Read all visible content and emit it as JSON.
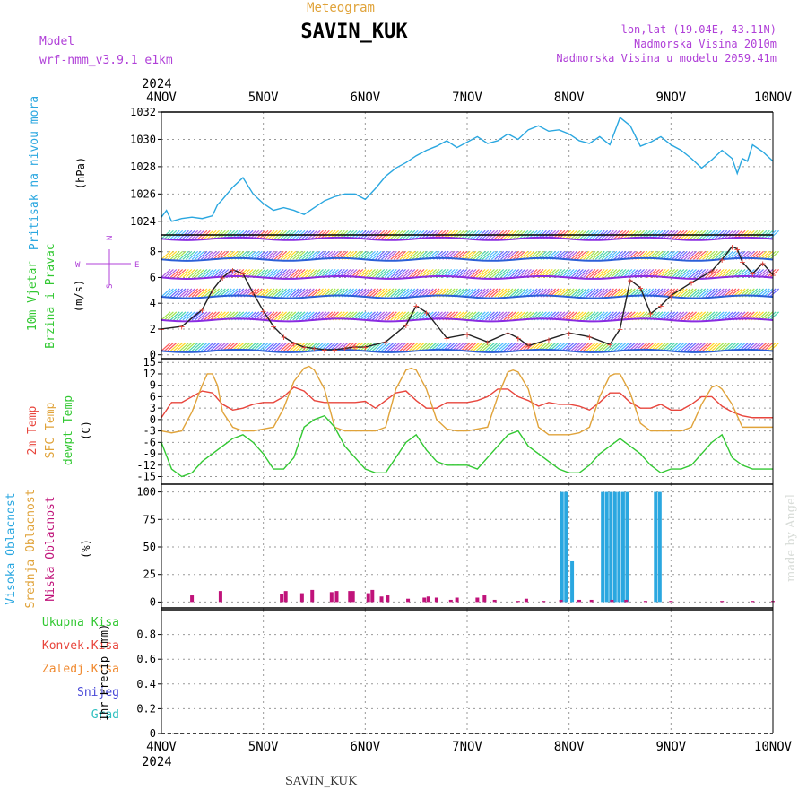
{
  "header": {
    "meteogram_label": "Meteogram",
    "station_title": "SAVIN_KUK",
    "model_label": "Model",
    "model_name": "wrf-nmm_v3.9.1  e1km",
    "lonlat": "lon,lat (19.04E, 43.11N)",
    "height": "Nadmorska Visina 2010m",
    "model_height": "Nadmorska Visina u modelu 2059.41m",
    "year_top": "2024",
    "year_bottom": "2024",
    "footer_station": "SAVIN_KUK",
    "credit": "made by Angel"
  },
  "colors": {
    "pressure": "#2aa7e0",
    "temp2m": "#e8453c",
    "sfc": "#e0a33a",
    "dewpt": "#32c832",
    "high_cloud": "#2aa7e0",
    "low_cloud": "#c0137a",
    "wind_blue": "#2b5fd8",
    "wind_purple": "#8a2be2",
    "rain_total": "#32c832",
    "rain_conv": "#e8453c",
    "rain_frozen": "#f08a30",
    "snow": "#4a4ad8",
    "hail": "#30c0c0"
  },
  "chart_data": [
    {
      "type": "line",
      "panel": "pressure",
      "ylabel_parts": [
        "Pritisak na nivou mora",
        "(hPa)"
      ],
      "ylim": [
        1023,
        1032
      ],
      "yticks": [
        1024,
        1026,
        1028,
        1030,
        1032
      ],
      "xticks": [
        "4NOV",
        "5NOV",
        "6NOV",
        "7NOV",
        "8NOV",
        "9NOV",
        "10NOV"
      ],
      "series": [
        {
          "color": "pressure",
          "x": [
            0,
            0.05,
            0.1,
            0.2,
            0.3,
            0.4,
            0.5,
            0.55,
            0.6,
            0.7,
            0.8,
            0.85,
            0.9,
            1.0,
            1.1,
            1.2,
            1.3,
            1.4,
            1.5,
            1.6,
            1.7,
            1.8,
            1.9,
            2.0,
            2.1,
            2.2,
            2.3,
            2.4,
            2.5,
            2.6,
            2.7,
            2.8,
            2.9,
            3.0,
            3.1,
            3.2,
            3.3,
            3.4,
            3.5,
            3.6,
            3.7,
            3.8,
            3.9,
            4.0,
            4.1,
            4.2,
            4.3,
            4.4,
            4.5,
            4.6,
            4.7,
            4.8,
            4.9,
            5.0,
            5.1,
            5.2,
            5.3,
            5.4,
            5.5,
            5.6,
            5.65,
            5.7,
            5.75,
            5.8,
            5.9,
            6.0
          ],
          "y": [
            1024.3,
            1024.8,
            1024.0,
            1024.2,
            1024.3,
            1024.2,
            1024.4,
            1025.2,
            1025.6,
            1026.5,
            1027.2,
            1026.6,
            1026.0,
            1025.3,
            1024.8,
            1025.0,
            1024.8,
            1024.5,
            1025.0,
            1025.5,
            1025.8,
            1026.0,
            1026.0,
            1025.6,
            1026.4,
            1027.3,
            1027.9,
            1028.3,
            1028.8,
            1029.2,
            1029.5,
            1029.9,
            1029.4,
            1029.8,
            1030.2,
            1029.7,
            1029.9,
            1030.4,
            1030.0,
            1030.7,
            1031.0,
            1030.6,
            1030.7,
            1030.4,
            1029.9,
            1029.7,
            1030.2,
            1029.6,
            1031.6,
            1031.0,
            1029.5,
            1029.8,
            1030.2,
            1029.6,
            1029.2,
            1028.6,
            1027.9,
            1028.5,
            1029.2,
            1028.6,
            1027.5,
            1028.6,
            1028.4,
            1029.6,
            1029.1,
            1028.4
          ]
        }
      ]
    },
    {
      "type": "line",
      "panel": "wind",
      "ylabel_parts": [
        "10m Vjetar",
        "Brzina i Pravac",
        "(m/s)"
      ],
      "compass": {
        "north": "N",
        "south": "S",
        "west": "W",
        "east": "E"
      },
      "ylim": [
        -0.3,
        9.3
      ],
      "yticks": [
        0,
        2,
        4,
        6,
        8
      ],
      "series": [
        {
          "name": "speed",
          "color": "#222222",
          "x": [
            0,
            0.2,
            0.4,
            0.5,
            0.6,
            0.7,
            0.8,
            0.9,
            1.0,
            1.1,
            1.2,
            1.3,
            1.4,
            1.5,
            1.6,
            1.7,
            1.8,
            1.9,
            2.0,
            2.2,
            2.4,
            2.5,
            2.6,
            2.8,
            3.0,
            3.2,
            3.4,
            3.5,
            3.6,
            3.8,
            4.0,
            4.2,
            4.4,
            4.5,
            4.6,
            4.7,
            4.8,
            4.9,
            5.0,
            5.2,
            5.4,
            5.5,
            5.6,
            5.65,
            5.7,
            5.8,
            5.9,
            6.0
          ],
          "y": [
            2.0,
            2.2,
            3.5,
            5.0,
            6.0,
            6.6,
            6.3,
            4.8,
            3.4,
            2.2,
            1.4,
            0.9,
            0.6,
            0.5,
            0.4,
            0.4,
            0.5,
            0.6,
            0.6,
            1.0,
            2.3,
            3.8,
            3.3,
            1.3,
            1.6,
            1.0,
            1.7,
            1.3,
            0.7,
            1.2,
            1.7,
            1.4,
            0.8,
            2.0,
            5.8,
            5.2,
            3.2,
            3.8,
            4.6,
            5.6,
            6.5,
            7.4,
            8.4,
            8.2,
            7.2,
            6.3,
            7.1,
            6.2
          ]
        }
      ],
      "wind_levels": [
        0.3,
        2.7,
        4.5,
        6.0,
        7.4,
        9.0
      ]
    },
    {
      "type": "line",
      "panel": "temperature",
      "ylabel_parts": [
        "2m Temp",
        "SFC Temp",
        "dewpt Temp",
        "(C)"
      ],
      "ylim": [
        -17,
        16
      ],
      "yticks": [
        -15,
        -12,
        -9,
        -6,
        -3,
        0,
        3,
        6,
        9,
        12,
        15
      ],
      "series": [
        {
          "name": "2m Temp",
          "color": "temp2m",
          "x": [
            0,
            0.1,
            0.2,
            0.3,
            0.4,
            0.5,
            0.6,
            0.7,
            0.8,
            0.9,
            1.0,
            1.1,
            1.2,
            1.3,
            1.4,
            1.5,
            1.6,
            1.7,
            1.8,
            1.9,
            2.0,
            2.1,
            2.2,
            2.3,
            2.4,
            2.5,
            2.6,
            2.7,
            2.8,
            2.9,
            3.0,
            3.1,
            3.2,
            3.3,
            3.4,
            3.5,
            3.6,
            3.7,
            3.8,
            3.9,
            4.0,
            4.1,
            4.2,
            4.3,
            4.4,
            4.5,
            4.6,
            4.7,
            4.8,
            4.9,
            5.0,
            5.1,
            5.2,
            5.3,
            5.4,
            5.5,
            5.6,
            5.7,
            5.8,
            5.9,
            6.0
          ],
          "y": [
            0.5,
            4.5,
            4.5,
            6.0,
            7.5,
            7.0,
            4.0,
            2.5,
            3.0,
            4.0,
            4.5,
            4.5,
            6.0,
            8.5,
            7.5,
            5.0,
            4.5,
            4.5,
            4.5,
            4.5,
            4.8,
            3.0,
            5.0,
            7.0,
            7.5,
            5.0,
            3.0,
            3.0,
            4.5,
            4.5,
            4.5,
            5.0,
            6.0,
            8.0,
            8.0,
            6.0,
            5.0,
            3.5,
            4.5,
            4.0,
            4.0,
            3.5,
            2.5,
            4.5,
            7.0,
            7.0,
            4.5,
            3.0,
            3.0,
            4.0,
            2.5,
            2.5,
            4.0,
            6.0,
            6.0,
            3.5,
            2.0,
            1.0,
            0.5,
            0.5,
            0.5
          ]
        },
        {
          "name": "SFC Temp",
          "color": "sfc",
          "x": [
            0,
            0.1,
            0.2,
            0.3,
            0.4,
            0.45,
            0.5,
            0.55,
            0.6,
            0.7,
            0.8,
            0.9,
            1.0,
            1.1,
            1.2,
            1.3,
            1.4,
            1.45,
            1.5,
            1.6,
            1.7,
            1.8,
            1.9,
            2.0,
            2.1,
            2.2,
            2.3,
            2.4,
            2.45,
            2.5,
            2.6,
            2.7,
            2.8,
            2.9,
            3.0,
            3.1,
            3.2,
            3.3,
            3.4,
            3.45,
            3.5,
            3.6,
            3.7,
            3.8,
            3.9,
            4.0,
            4.1,
            4.2,
            4.3,
            4.4,
            4.45,
            4.5,
            4.6,
            4.7,
            4.8,
            4.9,
            5.0,
            5.1,
            5.2,
            5.3,
            5.4,
            5.45,
            5.5,
            5.6,
            5.7,
            5.8,
            5.9,
            6.0
          ],
          "y": [
            -3,
            -3.5,
            -3,
            2,
            9,
            12,
            12,
            9,
            2,
            -2,
            -3,
            -3,
            -2.5,
            -2,
            3,
            10,
            13.5,
            14,
            13,
            8,
            -2,
            -3,
            -3,
            -3,
            -3,
            -2,
            8,
            13,
            13.5,
            13,
            8,
            0,
            -2.5,
            -3,
            -3,
            -2.5,
            -2,
            6,
            12.5,
            13,
            12.5,
            8,
            -2,
            -4,
            -4,
            -4,
            -3.5,
            -2,
            6,
            11.5,
            12,
            12,
            7,
            -1,
            -3,
            -3,
            -3,
            -3,
            -2,
            4,
            8.5,
            9,
            8,
            4,
            -2,
            -2,
            -2,
            -2
          ]
        },
        {
          "name": "dewpt Temp",
          "color": "dewpt",
          "x": [
            0,
            0.1,
            0.2,
            0.3,
            0.4,
            0.5,
            0.6,
            0.7,
            0.8,
            0.9,
            1.0,
            1.1,
            1.2,
            1.3,
            1.4,
            1.5,
            1.6,
            1.7,
            1.8,
            1.9,
            2.0,
            2.1,
            2.2,
            2.3,
            2.4,
            2.5,
            2.6,
            2.7,
            2.8,
            2.9,
            3.0,
            3.1,
            3.2,
            3.3,
            3.4,
            3.5,
            3.6,
            3.7,
            3.8,
            3.9,
            4.0,
            4.1,
            4.2,
            4.3,
            4.4,
            4.5,
            4.6,
            4.7,
            4.8,
            4.9,
            5.0,
            5.1,
            5.2,
            5.3,
            5.4,
            5.5,
            5.6,
            5.7,
            5.8,
            5.9,
            6.0
          ],
          "y": [
            -6,
            -13,
            -15,
            -14,
            -11,
            -9,
            -7,
            -5,
            -4,
            -6,
            -9,
            -13,
            -13,
            -10,
            -2,
            0,
            1,
            -2,
            -7,
            -10,
            -13,
            -14,
            -14,
            -10,
            -6,
            -4,
            -8,
            -11,
            -12,
            -12,
            -12,
            -13,
            -10,
            -7,
            -4,
            -3,
            -7,
            -9,
            -11,
            -13,
            -14,
            -14,
            -12,
            -9,
            -7,
            -5,
            -7,
            -9,
            -12,
            -14,
            -13,
            -13,
            -12,
            -9,
            -6,
            -4,
            -10,
            -12,
            -13,
            -13,
            -13
          ]
        }
      ]
    },
    {
      "type": "bar",
      "panel": "clouds",
      "ylabel_parts": [
        "Visoka Oblacnost",
        "Srednja Oblacnost",
        "Niska Oblacnost",
        "(%)"
      ],
      "ylim": [
        -7,
        107
      ],
      "yticks": [
        0,
        25,
        50,
        75,
        100
      ],
      "series": [
        {
          "name": "Visoka Oblacnost",
          "color": "high_cloud",
          "x": [
            3.93,
            3.97,
            4.03,
            4.33,
            4.37,
            4.41,
            4.45,
            4.49,
            4.53,
            4.57,
            4.85,
            4.89
          ],
          "values": [
            100,
            100,
            37,
            100,
            100,
            100,
            100,
            100,
            100,
            100,
            100,
            100
          ]
        },
        {
          "name": "Niska Oblacnost",
          "color": "low_cloud",
          "x": [
            0.3,
            0.58,
            1.18,
            1.22,
            1.38,
            1.48,
            1.67,
            1.72,
            1.85,
            1.88,
            2.03,
            2.07,
            2.16,
            2.22,
            2.42,
            2.58,
            2.62,
            2.7,
            2.84,
            2.9,
            3.1,
            3.17,
            3.27,
            3.5,
            3.58,
            3.75,
            3.92,
            4.1,
            4.22,
            4.42,
            4.56,
            4.75,
            5.0,
            5.5,
            5.8,
            6.0
          ],
          "values": [
            6,
            10,
            7,
            10,
            8,
            11,
            9,
            10,
            10,
            10,
            8,
            11,
            5,
            6,
            3,
            4,
            5,
            4,
            2,
            4,
            4,
            6,
            2,
            1,
            3,
            1,
            2,
            2,
            2,
            2,
            2,
            1,
            1,
            1,
            1,
            1
          ]
        }
      ]
    },
    {
      "type": "bar",
      "panel": "precip",
      "ylabel_parts": [
        "Ukupna Kisa",
        "Konvek.Kisa",
        "Zaledj.Kisa",
        "Snijeg",
        "Grad",
        "1hr Precip (mm)"
      ],
      "ylim": [
        0,
        1.0
      ],
      "yticks": [
        0,
        0.2,
        0.4,
        0.6,
        0.8
      ],
      "ytick_labels": [
        "0",
        "0.2",
        "0.4",
        "0.6",
        "0.8"
      ],
      "series": [
        {
          "name": "Ukupna Kisa",
          "color": "rain_total",
          "x": [],
          "values": []
        }
      ]
    }
  ]
}
